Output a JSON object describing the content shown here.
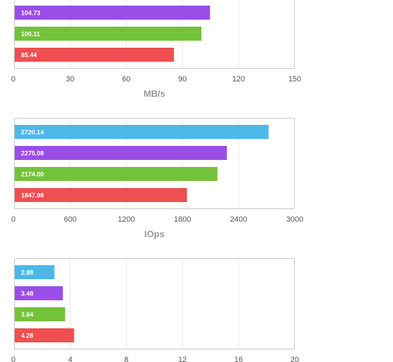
{
  "chart_data": [
    {
      "type": "bar",
      "orientation": "horizontal",
      "values": [
        104.73,
        100.11,
        85.44
      ],
      "colors": [
        "#9b4de8",
        "#74c23a",
        "#ee4f50"
      ],
      "xlabel": "MB/s",
      "ticks": [
        "0",
        "30",
        "60",
        "90",
        "120",
        "150"
      ],
      "xlim": [
        0,
        150
      ],
      "grid": true
    },
    {
      "type": "bar",
      "orientation": "horizontal",
      "values": [
        2720.14,
        2275.08,
        2174.0,
        1847.98
      ],
      "labels": [
        "2720.14",
        "2275.08",
        "2174.00",
        "1847.98"
      ],
      "colors": [
        "#4cb8ea",
        "#9b4de8",
        "#74c23a",
        "#ee4f50"
      ],
      "xlabel": "IOps",
      "ticks": [
        "0",
        "600",
        "1200",
        "1800",
        "2400",
        "3000"
      ],
      "xlim": [
        0,
        3000
      ],
      "grid": true
    },
    {
      "type": "bar",
      "orientation": "horizontal",
      "values": [
        2.88,
        3.48,
        3.64,
        4.28
      ],
      "colors": [
        "#4cb8ea",
        "#9b4de8",
        "#74c23a",
        "#ee4f50"
      ],
      "xlabel": "",
      "ticks": [
        "0",
        "4",
        "8",
        "12",
        "16",
        "20"
      ],
      "xlim": [
        0,
        20
      ],
      "grid": true
    }
  ]
}
